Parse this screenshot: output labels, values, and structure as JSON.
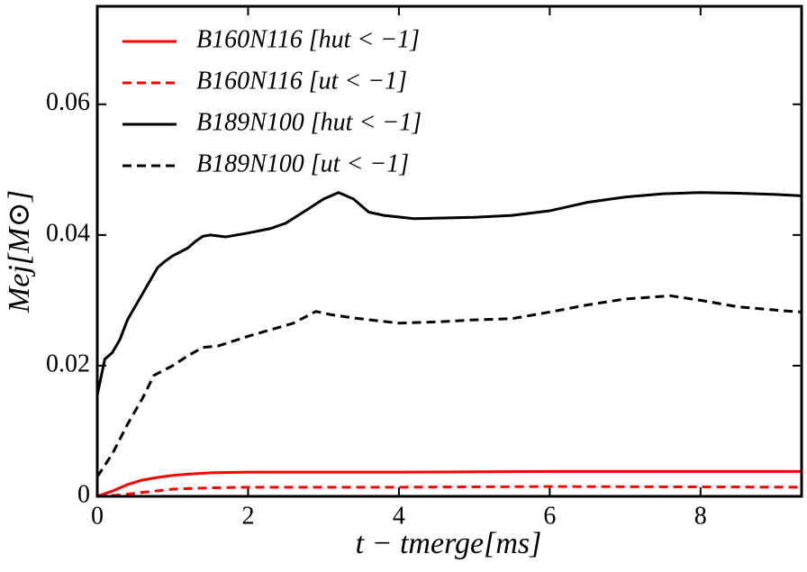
{
  "chart_data": {
    "type": "line",
    "x_label": "t − tmerge[ms]",
    "y_label": "Mej[M⊙]",
    "xlim": [
      0,
      9.34
    ],
    "xticks": [
      0,
      2,
      4,
      6,
      8
    ],
    "ylim": [
      0,
      0.075
    ],
    "yticks": [
      0,
      0.02,
      0.04,
      0.06
    ],
    "legend": "upper left",
    "series": [
      {
        "name": "B160N116 [hut < −1]",
        "color": "#ff0000",
        "dash": false,
        "x": [
          0,
          0.2,
          0.4,
          0.6,
          0.8,
          1.0,
          1.2,
          1.5,
          2.0,
          3.0,
          4.0,
          6.0,
          9.34
        ],
        "values": [
          0,
          0.0008,
          0.0018,
          0.0025,
          0.0029,
          0.0032,
          0.0034,
          0.0036,
          0.0037,
          0.0037,
          0.0037,
          0.0038,
          0.0038
        ]
      },
      {
        "name": "B160N116 [ut < −1]",
        "color": "#ff0000",
        "dash": true,
        "x": [
          0,
          0.3,
          0.6,
          1.0,
          1.5,
          2.0,
          4.0,
          6.0,
          9.34
        ],
        "values": [
          0,
          0.0002,
          0.0006,
          0.0011,
          0.0013,
          0.0014,
          0.0014,
          0.0015,
          0.0014
        ]
      },
      {
        "name": "B189N100 [hut < −1]",
        "color": "#000000",
        "dash": false,
        "x": [
          0,
          0.1,
          0.2,
          0.3,
          0.4,
          0.5,
          0.6,
          0.7,
          0.8,
          0.9,
          1.0,
          1.2,
          1.3,
          1.4,
          1.5,
          1.7,
          2.0,
          2.3,
          2.5,
          2.8,
          3.0,
          3.2,
          3.4,
          3.6,
          3.8,
          4.2,
          5.0,
          5.5,
          6.0,
          6.5,
          7.0,
          7.5,
          8.0,
          8.5,
          9.0,
          9.34
        ],
        "values": [
          0.0155,
          0.021,
          0.022,
          0.024,
          0.027,
          0.029,
          0.031,
          0.033,
          0.035,
          0.036,
          0.0368,
          0.038,
          0.039,
          0.0398,
          0.04,
          0.0397,
          0.0403,
          0.041,
          0.0418,
          0.044,
          0.0455,
          0.0465,
          0.0455,
          0.0435,
          0.043,
          0.0425,
          0.0427,
          0.043,
          0.0437,
          0.045,
          0.0458,
          0.0463,
          0.0465,
          0.0464,
          0.0462,
          0.046
        ]
      },
      {
        "name": "B189N100 [ut < −1]",
        "color": "#000000",
        "dash": true,
        "x": [
          0,
          0.2,
          0.4,
          0.6,
          0.75,
          1.0,
          1.2,
          1.4,
          1.6,
          2.0,
          2.3,
          2.6,
          2.9,
          3.1,
          3.4,
          4.0,
          4.5,
          5.0,
          5.5,
          6.0,
          6.5,
          7.0,
          7.6,
          8.0,
          8.5,
          9.0,
          9.34
        ],
        "values": [
          0.003,
          0.0065,
          0.011,
          0.015,
          0.0185,
          0.02,
          0.0215,
          0.0228,
          0.023,
          0.0245,
          0.0255,
          0.0265,
          0.0283,
          0.0278,
          0.0273,
          0.0265,
          0.0267,
          0.027,
          0.0272,
          0.0282,
          0.0293,
          0.0302,
          0.0307,
          0.03,
          0.029,
          0.0285,
          0.0282
        ]
      }
    ]
  }
}
